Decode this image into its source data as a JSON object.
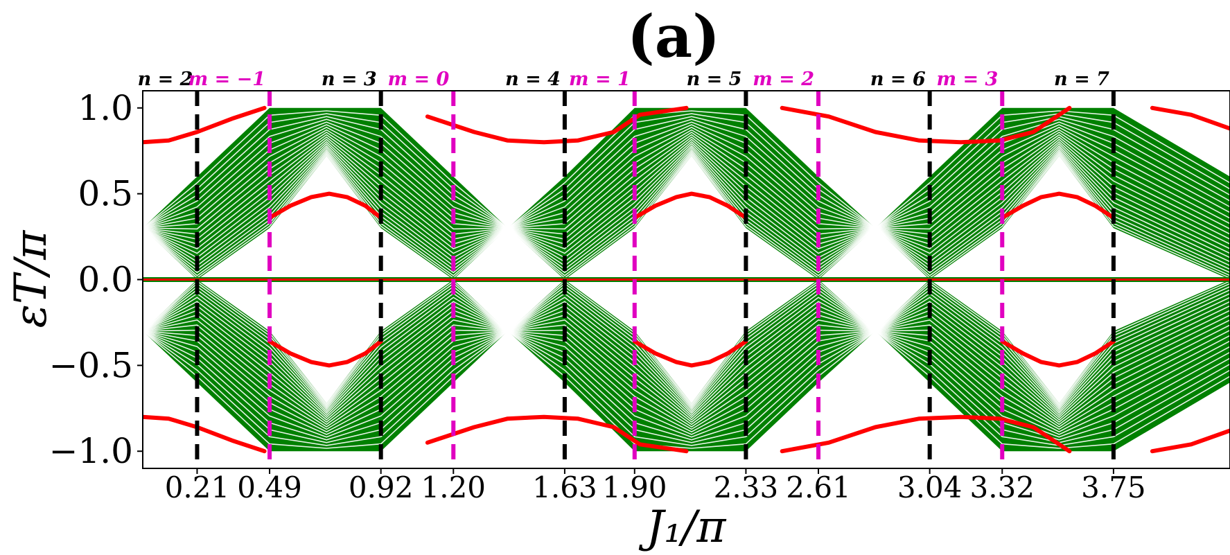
{
  "chart_data": {
    "type": "line",
    "panel_label": "(a)",
    "xlabel": "J₁/π",
    "ylabel": "εT/π",
    "xlim": [
      0,
      4.2
    ],
    "ylim": [
      -1.1,
      1.1
    ],
    "x_ticks": [
      "0.21",
      "0.49",
      "0.92",
      "1.20",
      "1.63",
      "1.90",
      "2.33",
      "2.61",
      "3.04",
      "3.32",
      "3.75"
    ],
    "y_ticks": [
      "1.0",
      "0.5",
      "0.0",
      "−0.5",
      "−1.0"
    ],
    "y_tick_values": [
      1.0,
      0.5,
      0.0,
      -0.5,
      -1.0
    ],
    "bulk_band_color": "#008000",
    "edge_state_color": "#ff0000",
    "series": [
      {
        "kind": "bulk-band",
        "line_count": 22,
        "x": [
          0.0,
          0.21,
          0.49,
          0.71,
          0.92,
          1.2,
          1.41,
          1.63,
          1.9,
          2.12,
          2.33,
          2.61,
          2.83,
          3.04,
          3.32,
          3.54,
          3.75,
          4.2
        ],
        "band_bottom": [
          0.3,
          0.0,
          0.3,
          0.72,
          0.3,
          0.0,
          0.3,
          0.0,
          0.3,
          0.72,
          0.3,
          0.0,
          0.3,
          0.0,
          0.3,
          0.72,
          0.3,
          0.0
        ],
        "band_top": [
          0.3,
          0.6,
          1.0,
          1.0,
          1.0,
          0.6,
          0.3,
          0.6,
          1.0,
          1.0,
          1.0,
          0.6,
          0.3,
          0.6,
          1.0,
          1.0,
          1.0,
          0.6
        ]
      },
      {
        "kind": "edge-outer",
        "x": [
          0.0,
          0.1,
          0.21,
          0.35,
          0.47,
          0.6,
          0.75,
          0.92,
          1.1,
          1.28,
          1.41,
          1.55,
          1.68,
          1.82,
          1.92,
          2.1,
          2.25,
          2.33,
          2.47,
          2.65,
          2.83,
          3.0,
          3.16,
          3.31,
          3.44,
          3.58,
          3.75,
          3.9,
          4.05,
          4.2
        ],
        "y": [
          0.8,
          0.81,
          0.86,
          0.94,
          1.0,
          0.0,
          0.0,
          0.0,
          0.95,
          0.86,
          0.81,
          0.8,
          0.81,
          0.86,
          0.96,
          1.0,
          0.0,
          0.0,
          1.0,
          0.95,
          0.86,
          0.81,
          0.8,
          0.81,
          0.86,
          1.0,
          0.0,
          1.0,
          0.96,
          0.88
        ]
      },
      {
        "kind": "edge-inner",
        "x": [
          0.49,
          0.57,
          0.65,
          0.72,
          0.79,
          0.86,
          0.92,
          1.9,
          1.98,
          2.06,
          2.12,
          2.19,
          2.26,
          2.33,
          3.32,
          3.4,
          3.47,
          3.54,
          3.61,
          3.68,
          3.75
        ],
        "y": [
          0.36,
          0.43,
          0.48,
          0.5,
          0.48,
          0.43,
          0.36,
          0.36,
          0.43,
          0.48,
          0.5,
          0.48,
          0.43,
          0.36,
          0.36,
          0.43,
          0.48,
          0.5,
          0.48,
          0.43,
          0.36
        ]
      },
      {
        "kind": "zero-mode",
        "x": [
          0.0,
          4.2
        ],
        "y": [
          0.0,
          0.0
        ]
      }
    ],
    "vertical_markers": [
      {
        "label": "n = 2",
        "x": 0.21,
        "color": "#000000"
      },
      {
        "label": "m = −1",
        "x": 0.49,
        "color": "#e000c0"
      },
      {
        "label": "n = 3",
        "x": 0.92,
        "color": "#000000"
      },
      {
        "label": "m = 0",
        "x": 1.2,
        "color": "#e000c0"
      },
      {
        "label": "n = 4",
        "x": 1.63,
        "color": "#000000"
      },
      {
        "label": "m = 1",
        "x": 1.9,
        "color": "#e000c0"
      },
      {
        "label": "n = 5",
        "x": 2.33,
        "color": "#000000"
      },
      {
        "label": "m = 2",
        "x": 2.61,
        "color": "#e000c0"
      },
      {
        "label": "n = 6",
        "x": 3.04,
        "color": "#000000"
      },
      {
        "label": "m = 3",
        "x": 3.32,
        "color": "#e000c0"
      },
      {
        "label": "n = 7",
        "x": 3.75,
        "color": "#000000"
      }
    ],
    "grid": false,
    "legend": "none"
  }
}
